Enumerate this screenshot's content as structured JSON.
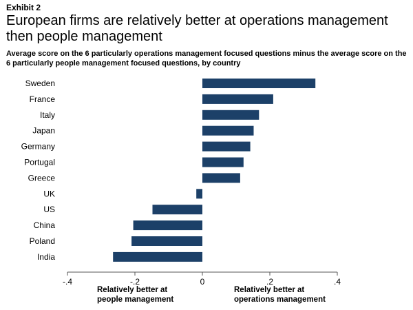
{
  "exhibit": "Exhibit 2",
  "title": "European firms are relatively better at operations management then people management",
  "subtitle": "Average score on the 6 particularly operations management focused questions minus the average score on the 6 particularly people management focused questions, by country",
  "colors": {
    "bar": "#1c4068",
    "axis": "#555555"
  },
  "chart_data": {
    "type": "bar",
    "orientation": "horizontal",
    "categories": [
      "Sweden",
      "France",
      "Italy",
      "Japan",
      "Germany",
      "Portugal",
      "Greece",
      "UK",
      "US",
      "China",
      "Poland",
      "India"
    ],
    "values": [
      0.335,
      0.21,
      0.168,
      0.152,
      0.142,
      0.122,
      0.112,
      -0.018,
      -0.148,
      -0.205,
      -0.21,
      -0.265
    ],
    "xlim": [
      -0.4,
      0.4
    ],
    "xticks": [
      -0.4,
      -0.2,
      0,
      0.2,
      0.4
    ],
    "xtick_labels": [
      "-.4",
      "-.2",
      "0",
      ".2",
      ".4"
    ],
    "grid": false,
    "legend": "none",
    "annotations": [
      {
        "lines": [
          "Relatively better at",
          "people management"
        ],
        "side": "negative"
      },
      {
        "lines": [
          "Relatively better at",
          "operations management"
        ],
        "side": "positive"
      }
    ]
  }
}
